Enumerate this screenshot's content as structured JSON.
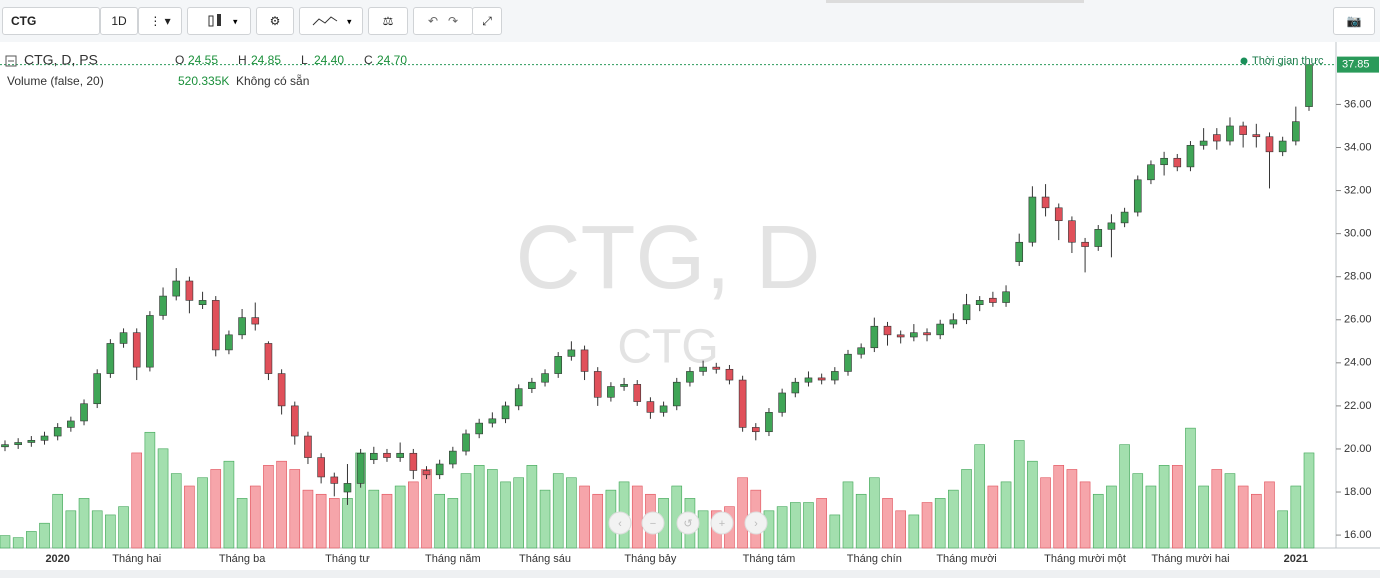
{
  "toolbar": {
    "symbol": "CTG",
    "interval": "1D"
  },
  "chart_data": {
    "type": "candlestick",
    "watermark": "CTG, D",
    "watermark_sub": "CTG",
    "legend": {
      "title": "CTG, D, PS",
      "items": [
        {
          "label": "O",
          "value": "24.55"
        },
        {
          "label": "H",
          "value": "24.85"
        },
        {
          "label": "L",
          "value": "24.40"
        },
        {
          "label": "C",
          "value": "24.70"
        }
      ],
      "volume_title": "Volume (false, 20)",
      "volume_value": "520.335K",
      "volume_note": "Không có sẵn"
    },
    "status": "Thời gian thực",
    "categories": [
      null,
      null,
      null,
      null,
      "2020",
      null,
      null,
      null,
      null,
      null,
      "Tháng hai",
      null,
      null,
      null,
      null,
      null,
      null,
      null,
      "Tháng ba",
      null,
      null,
      null,
      null,
      null,
      null,
      null,
      "Tháng tư",
      null,
      null,
      null,
      null,
      null,
      null,
      null,
      "Tháng năm",
      null,
      null,
      null,
      null,
      null,
      null,
      "Tháng sáu",
      null,
      null,
      null,
      null,
      null,
      null,
      null,
      "Tháng bảy",
      null,
      null,
      null,
      null,
      null,
      null,
      null,
      null,
      "Tháng tám",
      null,
      null,
      null,
      null,
      null,
      null,
      null,
      "Tháng chín",
      null,
      null,
      null,
      null,
      null,
      null,
      "Tháng mười",
      null,
      null,
      null,
      null,
      null,
      null,
      null,
      null,
      "Tháng mười một",
      null,
      null,
      null,
      null,
      null,
      null,
      null,
      "Tháng mười hai",
      null,
      null,
      null,
      null,
      null,
      null,
      null,
      "2021",
      null
    ],
    "open": [
      20.1,
      20.2,
      20.3,
      20.4,
      20.6,
      21.0,
      21.3,
      22.1,
      23.5,
      24.9,
      25.4,
      23.8,
      26.2,
      27.1,
      27.8,
      26.7,
      26.9,
      24.6,
      25.3,
      26.1,
      24.9,
      23.5,
      22.0,
      20.6,
      19.6,
      18.7,
      18.0,
      18.4,
      19.5,
      19.8,
      19.6,
      19.8,
      19.0,
      18.8,
      19.3,
      19.9,
      20.7,
      21.2,
      21.4,
      22.0,
      22.8,
      23.1,
      23.5,
      24.3,
      24.6,
      23.6,
      22.4,
      22.9,
      23.0,
      22.2,
      21.7,
      22.0,
      23.1,
      23.6,
      23.8,
      23.7,
      23.2,
      21.0,
      20.8,
      21.7,
      22.6,
      23.1,
      23.3,
      23.2,
      23.6,
      24.4,
      24.7,
      25.7,
      25.3,
      25.2,
      25.4,
      25.3,
      25.8,
      26.0,
      26.7,
      27.0,
      26.8,
      28.7,
      29.6,
      31.7,
      31.2,
      30.6,
      29.6,
      29.4,
      30.2,
      30.5,
      31.0,
      32.5,
      33.2,
      33.5,
      33.1,
      34.1,
      34.6,
      34.3,
      35.0,
      34.6,
      34.5,
      33.8,
      34.3,
      35.9
    ],
    "high": [
      20.4,
      20.5,
      20.6,
      20.8,
      21.2,
      21.5,
      22.3,
      23.7,
      25.1,
      25.6,
      25.6,
      26.4,
      27.5,
      28.4,
      28.0,
      27.3,
      27.1,
      25.5,
      26.5,
      26.8,
      25.0,
      23.7,
      22.2,
      20.8,
      19.8,
      18.9,
      19.3,
      20.0,
      20.1,
      20.0,
      20.3,
      20.0,
      19.2,
      19.5,
      20.1,
      20.9,
      21.4,
      21.7,
      22.2,
      23.0,
      23.3,
      23.7,
      24.5,
      25.0,
      24.8,
      23.8,
      23.1,
      23.3,
      23.2,
      22.4,
      22.2,
      23.3,
      23.8,
      24.1,
      24.0,
      23.9,
      23.4,
      21.2,
      21.9,
      22.8,
      23.3,
      23.6,
      23.5,
      23.8,
      24.6,
      24.9,
      26.1,
      25.9,
      25.5,
      25.8,
      25.6,
      26.0,
      26.3,
      27.2,
      27.1,
      27.3,
      27.6,
      30.0,
      32.2,
      32.3,
      31.4,
      30.8,
      29.8,
      30.4,
      30.9,
      31.2,
      32.7,
      33.4,
      33.8,
      33.7,
      34.3,
      34.9,
      34.9,
      35.4,
      35.2,
      35.1,
      34.7,
      34.5,
      35.9,
      37.85
    ],
    "low": [
      19.9,
      20.0,
      20.1,
      20.2,
      20.4,
      20.8,
      21.1,
      21.9,
      23.3,
      24.7,
      23.2,
      23.6,
      26.0,
      26.9,
      26.3,
      26.5,
      24.3,
      24.4,
      25.1,
      25.5,
      23.2,
      21.6,
      20.2,
      19.3,
      18.4,
      17.8,
      17.4,
      18.2,
      19.3,
      19.4,
      19.4,
      18.6,
      18.6,
      18.6,
      19.1,
      19.7,
      20.5,
      21.0,
      21.2,
      21.8,
      22.6,
      22.9,
      23.3,
      24.1,
      23.2,
      22.0,
      22.2,
      22.7,
      22.0,
      21.4,
      21.5,
      21.8,
      22.9,
      23.4,
      23.5,
      23.0,
      20.8,
      20.4,
      20.6,
      21.5,
      22.4,
      22.9,
      23.0,
      23.0,
      23.4,
      24.2,
      24.5,
      24.8,
      24.9,
      25.0,
      25.0,
      25.1,
      25.6,
      25.8,
      26.4,
      26.6,
      26.6,
      28.5,
      29.4,
      30.8,
      29.7,
      29.1,
      28.2,
      29.2,
      28.9,
      30.3,
      30.8,
      32.3,
      32.7,
      32.9,
      32.9,
      33.9,
      33.9,
      34.1,
      34.0,
      34.0,
      32.1,
      33.6,
      34.1,
      35.7
    ],
    "close": [
      20.2,
      20.3,
      20.4,
      20.6,
      21.0,
      21.3,
      22.1,
      23.5,
      24.9,
      25.4,
      23.8,
      26.2,
      27.1,
      27.8,
      26.9,
      26.9,
      24.6,
      25.3,
      26.1,
      25.8,
      23.5,
      22.0,
      20.6,
      19.6,
      18.7,
      18.4,
      18.4,
      19.8,
      19.8,
      19.6,
      19.8,
      19.0,
      18.8,
      19.3,
      19.9,
      20.7,
      21.2,
      21.4,
      22.0,
      22.8,
      23.1,
      23.5,
      24.3,
      24.6,
      23.6,
      22.4,
      22.9,
      23.0,
      22.2,
      21.7,
      22.0,
      23.1,
      23.6,
      23.8,
      23.7,
      23.2,
      21.0,
      20.8,
      21.7,
      22.6,
      23.1,
      23.3,
      23.2,
      23.6,
      24.4,
      24.7,
      25.7,
      25.3,
      25.2,
      25.4,
      25.3,
      25.8,
      26.0,
      26.7,
      26.9,
      26.8,
      27.3,
      29.6,
      31.7,
      31.2,
      30.6,
      29.6,
      29.4,
      30.2,
      30.5,
      31.0,
      32.5,
      33.2,
      33.5,
      33.1,
      34.1,
      34.3,
      34.3,
      35.0,
      34.6,
      34.5,
      33.8,
      34.3,
      35.2,
      37.85
    ],
    "volume": [
      300,
      250,
      400,
      600,
      1300,
      900,
      1200,
      900,
      800,
      1000,
      2300,
      2800,
      2400,
      1800,
      1500,
      1700,
      1900,
      2100,
      1200,
      1500,
      2000,
      2100,
      1900,
      1400,
      1300,
      1200,
      1200,
      2300,
      1400,
      1300,
      1500,
      1600,
      1900,
      1300,
      1200,
      1800,
      2000,
      1900,
      1600,
      1700,
      2000,
      1400,
      1800,
      1700,
      1500,
      1300,
      1400,
      1600,
      1500,
      1300,
      1200,
      1500,
      1200,
      900,
      900,
      1000,
      1700,
      1400,
      900,
      1000,
      1100,
      1100,
      1200,
      800,
      1600,
      1300,
      1700,
      1200,
      900,
      800,
      1100,
      1200,
      1400,
      1900,
      2500,
      1500,
      1600,
      2600,
      2100,
      1700,
      2000,
      1900,
      1600,
      1300,
      1500,
      2500,
      1800,
      1500,
      2000,
      2000,
      2900,
      1500,
      1900,
      1800,
      1500,
      1300,
      1600,
      900,
      1500,
      2300
    ],
    "up_color": "#3fa556",
    "down_color": "#e0505a",
    "ylim": [
      15.4,
      38.9
    ],
    "yticks": [
      {
        "value": 16,
        "label": "16.00"
      },
      {
        "value": 18,
        "label": "18.00"
      },
      {
        "value": 20,
        "label": "20.00"
      },
      {
        "value": 22,
        "label": "22.00"
      },
      {
        "value": 24,
        "label": "24.00"
      },
      {
        "value": 26,
        "label": "26.00"
      },
      {
        "value": 28,
        "label": "28.00"
      },
      {
        "value": 30,
        "label": "30.00"
      },
      {
        "value": 32,
        "label": "32.00"
      },
      {
        "value": 34,
        "label": "34.00"
      },
      {
        "value": 36,
        "label": "36.00"
      }
    ],
    "vlim": [
      0,
      3000
    ]
  }
}
